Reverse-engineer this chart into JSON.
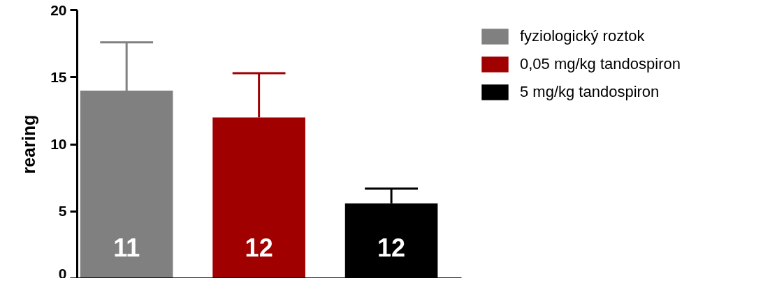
{
  "chart_data": {
    "type": "bar",
    "ylabel": "rearing",
    "categories": [
      null,
      null,
      null
    ],
    "series": [
      {
        "name": "fyziologický roztok",
        "color": "#808080",
        "values": [
          14.0,
          null,
          null
        ],
        "errors": [
          [
            14.0,
            17.6
          ],
          null,
          null
        ]
      },
      {
        "name": "0,05 mg/kg tandospiron",
        "color": "#a00000",
        "values": [
          null,
          12.0,
          null
        ],
        "errors": [
          null,
          [
            12.0,
            15.3
          ],
          null
        ]
      },
      {
        "name": "5 mg/kg tandospiron",
        "color": "#000000",
        "values": [
          null,
          null,
          5.6
        ],
        "errors": [
          null,
          null,
          [
            5.6,
            6.7
          ]
        ]
      }
    ],
    "ylim": [
      0,
      20
    ],
    "yticks": [
      0,
      5,
      10,
      15,
      20
    ],
    "grid": false,
    "legend": "top right",
    "annotations": [
      "11",
      "12",
      "12"
    ]
  }
}
